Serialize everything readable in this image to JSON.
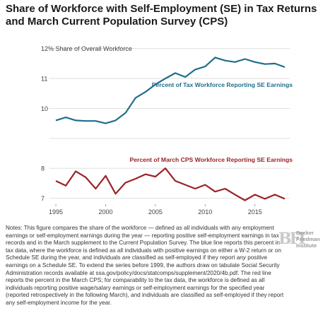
{
  "title": "Share of Workforce with Self-Employment (SE) in Tax Returns and March Current Population Survey (CPS)",
  "chart_data": {
    "type": "line",
    "title": "Share of Workforce with Self-Employment (SE) in Tax Returns and March Current Population Survey (CPS)",
    "y_axis_caption": "12% Share of Overall Workforce",
    "x_ticks": [
      1995,
      2000,
      2005,
      2010,
      2015
    ],
    "y_ticks": [
      "7",
      "8",
      "",
      "10",
      "11",
      "12% Share of Overall Workforce"
    ],
    "xlim": [
      1994.5,
      2018.5
    ],
    "ylim": [
      6.8,
      12.3
    ],
    "grid": "horizontal",
    "legend": "inline labels",
    "series": [
      {
        "name": "Percent of Tax Workforce Reporting SE Earnings",
        "color": "#1f6e8c",
        "x": [
          1995,
          1996,
          1997,
          1998,
          1999,
          2000,
          2001,
          2002,
          2003,
          2004,
          2005,
          2006,
          2007,
          2008,
          2009,
          2010,
          2011,
          2012,
          2013,
          2014,
          2015,
          2016,
          2017,
          2018
        ],
        "y": [
          9.6,
          9.7,
          9.6,
          9.58,
          9.58,
          9.5,
          9.6,
          9.85,
          10.35,
          10.55,
          10.8,
          11.0,
          11.18,
          11.05,
          11.3,
          11.4,
          11.7,
          11.6,
          11.55,
          11.65,
          11.55,
          11.48,
          11.5,
          11.38
        ]
      },
      {
        "name": "Percent of March CPS Workforce Reporting SE Earnings",
        "color": "#9b2226",
        "x": [
          1995,
          1996,
          1997,
          1998,
          1999,
          2000,
          2001,
          2002,
          2003,
          2004,
          2005,
          2006,
          2007,
          2008,
          2009,
          2010,
          2011,
          2012,
          2013,
          2014,
          2015,
          2016,
          2017,
          2018
        ],
        "y": [
          7.58,
          7.42,
          7.9,
          7.7,
          7.32,
          7.75,
          7.15,
          7.52,
          7.65,
          7.8,
          7.72,
          8.0,
          7.58,
          7.45,
          7.32,
          7.45,
          7.22,
          7.32,
          7.12,
          6.93,
          7.12,
          6.98,
          7.12,
          6.98
        ]
      }
    ]
  },
  "notes": {
    "part1": "Notes: This figure compares the share of the workforce — defined as all individuals with any employment earnings or self-employment earnings during the year — reporting positive self-employment earnings in tax records and in the March supplement to the Current Population Survey. The blue line reports this percent in tax data, where the workforce is defined as all individuals with positive earnings on either a W-2 return or on Schedule SE during the year, and individuals are classified as self-employed if they report ",
    "emph": "any",
    "part2": " positive earnings on a Schedule SE. To extend the series before 1999, the authors draw on tabulate Social Security Administration records available at ssa.gov/policy/docs/statcomps/supplement/2020/4b.pdf. The red line reports the percent in the March CPS; for comparability to the tax data, the workforce is defined as all individuals reporting positive wage/salary earnings or self-employment earnings for the specified year (reported retrospectively in the following March), and individuals are classified as self-employed if they report any self-employment income for the year."
  },
  "logo": {
    "mark": "BFI",
    "lines": [
      "Becker",
      "Friedman",
      "Institute"
    ]
  }
}
